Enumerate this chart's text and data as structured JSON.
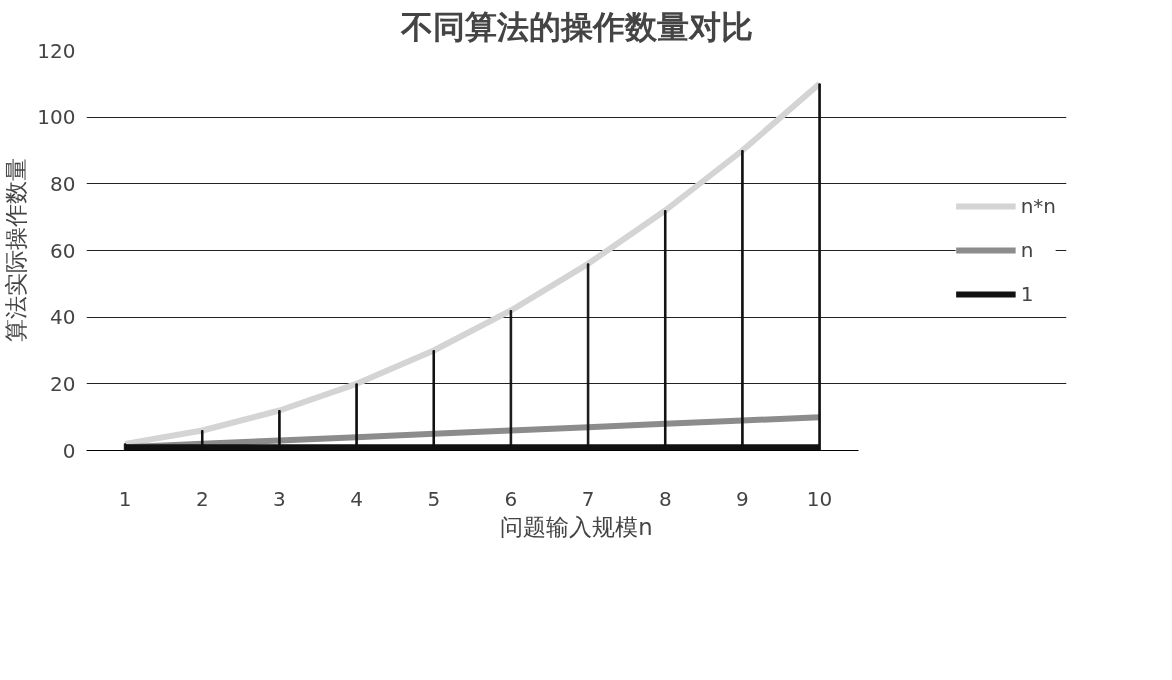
{
  "chart_data": {
    "type": "line",
    "title": "不同算法的操作数量对比",
    "xlabel": "问题输入规模n",
    "ylabel": "算法实际操作数量",
    "categories": [
      "1",
      "2",
      "3",
      "4",
      "5",
      "6",
      "7",
      "8",
      "9",
      "10"
    ],
    "series": [
      {
        "name": "n*n",
        "color": "#d4d4d4",
        "values": [
          2,
          6,
          12,
          20,
          30,
          42,
          56,
          72,
          90,
          110
        ]
      },
      {
        "name": "n",
        "color": "#8c8c8c",
        "values": [
          1,
          2,
          3,
          4,
          5,
          6,
          7,
          8,
          9,
          10
        ]
      },
      {
        "name": "1",
        "color": "#111111",
        "values": [
          1,
          1,
          1,
          1,
          1,
          1,
          1,
          1,
          1,
          1
        ]
      },
      {
        "type": "bar",
        "color": "#111111",
        "values": [
          2,
          6,
          12,
          20,
          30,
          42,
          56,
          72,
          90,
          110
        ]
      }
    ],
    "ylim": [
      0,
      120
    ],
    "yticks": [
      0,
      20,
      40,
      60,
      80,
      100,
      120
    ],
    "grid": "y",
    "legend": "right",
    "marker": "none",
    "line_style": "solid"
  }
}
